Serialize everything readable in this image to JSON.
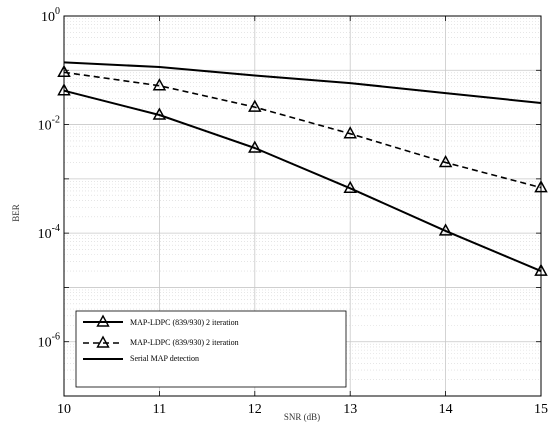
{
  "chart_data": {
    "type": "line",
    "xlabel": "SNR (dB)",
    "ylabel": "BER",
    "xlim": [
      10,
      15
    ],
    "ylim": [
      1e-07,
      1
    ],
    "yscale": "log",
    "grid": true,
    "minor_grid": true,
    "legend_position": "bottom-left",
    "x_ticks": [
      10,
      11,
      12,
      13,
      14,
      15
    ],
    "x_tick_labels": [
      "10",
      "11",
      "12",
      "13",
      "14",
      "15"
    ],
    "y_ticks": [
      {
        "value": 1,
        "base": "10",
        "exp": "0"
      },
      {
        "value": 0.01,
        "base": "10",
        "exp": "-2"
      },
      {
        "value": 0.0001,
        "base": "10",
        "exp": "-4"
      },
      {
        "value": 1e-06,
        "base": "10",
        "exp": "-6"
      }
    ],
    "series": [
      {
        "name": "MAP-LDPC (839/930) 2 iteration",
        "style": "solid",
        "marker": "triangle",
        "color": "#000000",
        "x": [
          10,
          11,
          12,
          13,
          14,
          15
        ],
        "y": [
          0.042,
          0.015,
          0.0037,
          0.00067,
          0.00011,
          2e-05
        ]
      },
      {
        "name": "MAP-LDPC (839/930) 2 iteration",
        "style": "dashed",
        "marker": "triangle",
        "color": "#000000",
        "x": [
          10,
          11,
          12,
          13,
          14,
          15
        ],
        "y": [
          0.092,
          0.052,
          0.021,
          0.0068,
          0.002,
          0.00069
        ]
      },
      {
        "name": "Serial MAP detection",
        "style": "solid",
        "marker": "none",
        "color": "#000000",
        "x": [
          10,
          11,
          12,
          13,
          14,
          15
        ],
        "y": [
          0.14,
          0.115,
          0.08,
          0.058,
          0.038,
          0.025
        ]
      }
    ]
  }
}
